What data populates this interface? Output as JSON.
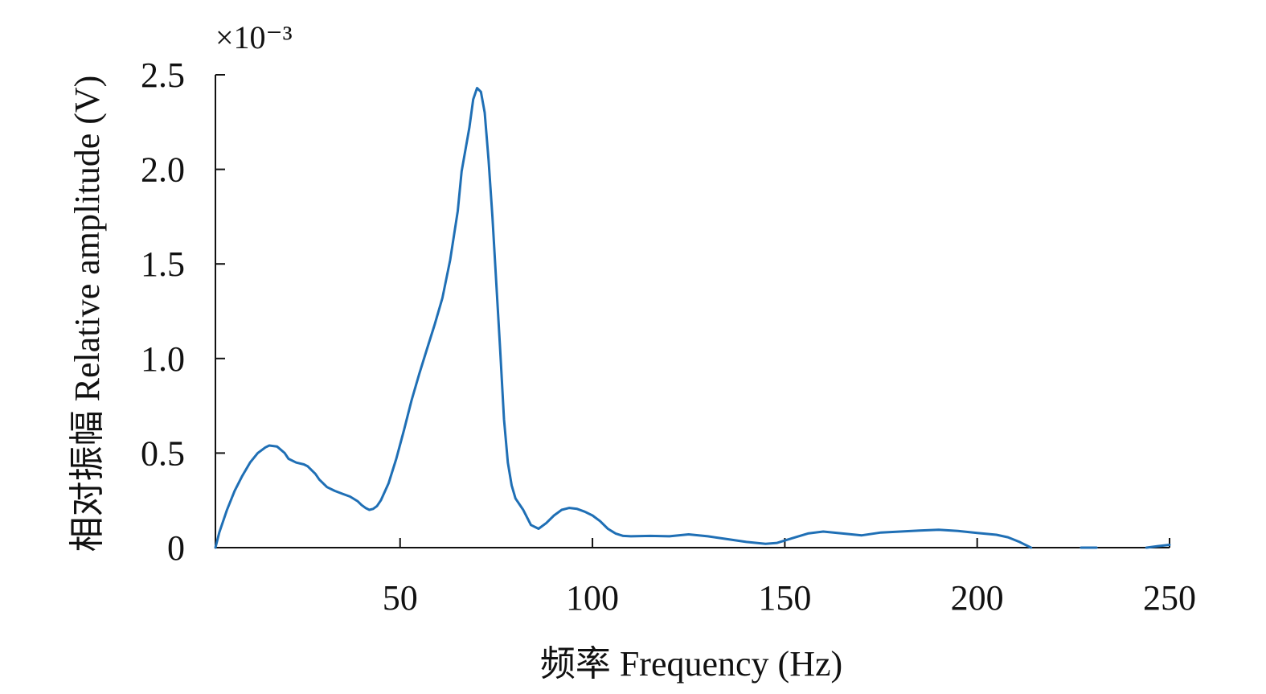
{
  "chart_data": {
    "type": "line",
    "xlabel": "频率 Frequency (Hz)",
    "ylabel": "相对振幅 Relative amplitude (V)",
    "y_scale_label": "×10⁻³",
    "xlim": [
      2,
      250
    ],
    "ylim": [
      0,
      2.5
    ],
    "xticks": [
      50,
      100,
      150,
      200,
      250
    ],
    "yticks": [
      0,
      0.5,
      1.0,
      1.5,
      2.0,
      2.5
    ],
    "ytick_labels": [
      "0",
      "0.5",
      "1.0",
      "1.5",
      "2.0",
      "2.5"
    ],
    "grid": false,
    "legend": "none",
    "series": [
      {
        "color": "#1f6fb5",
        "segments": [
          [
            [
              2,
              0
            ],
            [
              3,
              0.08
            ],
            [
              5,
              0.2
            ],
            [
              7,
              0.3
            ],
            [
              9,
              0.38
            ],
            [
              11,
              0.45
            ],
            [
              13,
              0.5
            ],
            [
              15,
              0.53
            ],
            [
              16,
              0.54
            ],
            [
              18,
              0.535
            ],
            [
              20,
              0.5
            ],
            [
              21,
              0.47
            ],
            [
              23,
              0.45
            ],
            [
              25,
              0.44
            ],
            [
              26,
              0.43
            ],
            [
              28,
              0.39
            ],
            [
              29,
              0.36
            ],
            [
              31,
              0.32
            ],
            [
              33,
              0.3
            ],
            [
              35,
              0.285
            ],
            [
              37,
              0.27
            ],
            [
              39,
              0.245
            ],
            [
              40,
              0.225
            ],
            [
              41,
              0.21
            ],
            [
              42,
              0.2
            ],
            [
              43,
              0.205
            ],
            [
              44,
              0.22
            ],
            [
              45,
              0.25
            ],
            [
              47,
              0.34
            ],
            [
              49,
              0.47
            ],
            [
              51,
              0.62
            ],
            [
              53,
              0.78
            ],
            [
              55,
              0.92
            ],
            [
              57,
              1.05
            ],
            [
              59,
              1.18
            ],
            [
              61,
              1.32
            ],
            [
              63,
              1.52
            ],
            [
              65,
              1.78
            ],
            [
              66,
              1.99
            ],
            [
              68,
              2.22
            ],
            [
              69,
              2.37
            ],
            [
              70,
              2.43
            ],
            [
              71,
              2.41
            ],
            [
              72,
              2.3
            ],
            [
              73,
              2.05
            ],
            [
              74,
              1.75
            ],
            [
              75,
              1.4
            ],
            [
              76,
              1.05
            ],
            [
              77,
              0.68
            ],
            [
              78,
              0.45
            ],
            [
              79,
              0.33
            ],
            [
              80,
              0.26
            ],
            [
              82,
              0.2
            ],
            [
              84,
              0.12
            ],
            [
              86,
              0.1
            ],
            [
              88,
              0.13
            ],
            [
              90,
              0.17
            ],
            [
              92,
              0.2
            ],
            [
              94,
              0.21
            ],
            [
              96,
              0.205
            ],
            [
              98,
              0.19
            ],
            [
              100,
              0.17
            ],
            [
              102,
              0.14
            ],
            [
              104,
              0.1
            ],
            [
              106,
              0.075
            ],
            [
              108,
              0.062
            ],
            [
              110,
              0.06
            ],
            [
              115,
              0.062
            ],
            [
              120,
              0.06
            ],
            [
              125,
              0.07
            ],
            [
              130,
              0.06
            ],
            [
              135,
              0.045
            ],
            [
              140,
              0.03
            ],
            [
              145,
              0.02
            ],
            [
              148,
              0.025
            ],
            [
              152,
              0.05
            ],
            [
              156,
              0.075
            ],
            [
              160,
              0.085
            ],
            [
              165,
              0.075
            ],
            [
              170,
              0.065
            ],
            [
              175,
              0.08
            ],
            [
              180,
              0.085
            ],
            [
              185,
              0.09
            ],
            [
              190,
              0.095
            ],
            [
              195,
              0.088
            ],
            [
              200,
              0.078
            ],
            [
              205,
              0.068
            ],
            [
              208,
              0.055
            ],
            [
              211,
              0.03
            ],
            [
              214,
              0.0
            ]
          ],
          [
            [
              227,
              0.0
            ],
            [
              231,
              0.0
            ]
          ],
          [
            [
              244,
              0.0
            ],
            [
              247,
              0.008
            ],
            [
              250,
              0.015
            ]
          ]
        ]
      }
    ]
  }
}
